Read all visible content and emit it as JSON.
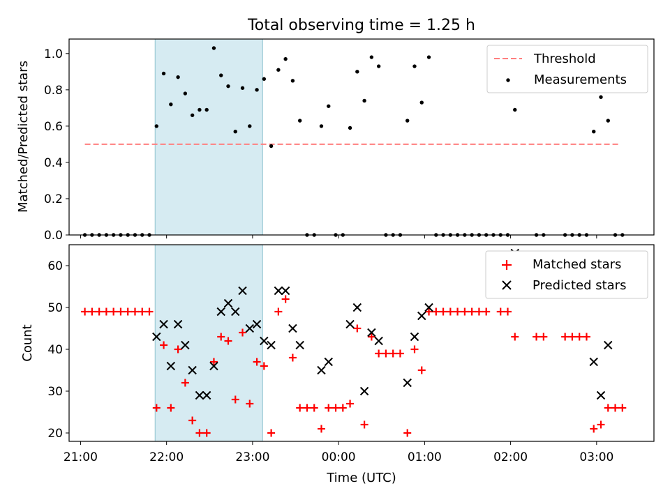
{
  "chart_data": [
    {
      "type": "scatter",
      "title": "Total observing time = 1.25 h",
      "xlabel": "",
      "ylabel": "Matched/Predicted stars",
      "xlim": [
        "20:52",
        "03:40"
      ],
      "ylim": [
        0,
        1.08
      ],
      "yticks": [
        "0.0",
        "0.2",
        "0.4",
        "0.6",
        "0.8",
        "1.0"
      ],
      "grid": false,
      "legend_position": "top-right",
      "shaded_interval": [
        "21:52",
        "23:07"
      ],
      "series": [
        {
          "name": "Threshold",
          "kind": "dashed-line",
          "color": "#ff7f7f",
          "x": [
            "21:03",
            "03:15"
          ],
          "y": [
            0.5,
            0.5
          ]
        },
        {
          "name": "Measurements",
          "kind": "points",
          "color": "#000000",
          "points": [
            [
              "21:03",
              0
            ],
            [
              "21:08",
              0
            ],
            [
              "21:13",
              0
            ],
            [
              "21:18",
              0
            ],
            [
              "21:23",
              0
            ],
            [
              "21:28",
              0
            ],
            [
              "21:33",
              0
            ],
            [
              "21:38",
              0
            ],
            [
              "21:43",
              0
            ],
            [
              "21:48",
              0
            ],
            [
              "21:53",
              0.6
            ],
            [
              "21:58",
              0.89
            ],
            [
              "22:03",
              0.72
            ],
            [
              "22:08",
              0.87
            ],
            [
              "22:13",
              0.78
            ],
            [
              "22:18",
              0.66
            ],
            [
              "22:23",
              0.69
            ],
            [
              "22:28",
              0.69
            ],
            [
              "22:33",
              1.03
            ],
            [
              "22:38",
              0.88
            ],
            [
              "22:43",
              0.82
            ],
            [
              "22:48",
              0.57
            ],
            [
              "22:53",
              0.81
            ],
            [
              "22:58",
              0.6
            ],
            [
              "23:03",
              0.8
            ],
            [
              "23:08",
              0.86
            ],
            [
              "23:13",
              0.49
            ],
            [
              "23:18",
              0.91
            ],
            [
              "23:23",
              0.97
            ],
            [
              "23:28",
              0.85
            ],
            [
              "23:33",
              0.63
            ],
            [
              "23:38",
              0
            ],
            [
              "23:43",
              0
            ],
            [
              "23:48",
              0.6
            ],
            [
              "23:53",
              0.71
            ],
            [
              "23:58",
              0
            ],
            [
              "00:03",
              0
            ],
            [
              "00:08",
              0.59
            ],
            [
              "00:13",
              0.9
            ],
            [
              "00:18",
              0.74
            ],
            [
              "00:23",
              0.98
            ],
            [
              "00:28",
              0.93
            ],
            [
              "00:33",
              0
            ],
            [
              "00:38",
              0
            ],
            [
              "00:43",
              0
            ],
            [
              "00:48",
              0.63
            ],
            [
              "00:53",
              0.93
            ],
            [
              "00:58",
              0.73
            ],
            [
              "01:03",
              0.98
            ],
            [
              "01:08",
              0
            ],
            [
              "01:13",
              0
            ],
            [
              "01:18",
              0
            ],
            [
              "01:23",
              0
            ],
            [
              "01:28",
              0
            ],
            [
              "01:33",
              0
            ],
            [
              "01:38",
              0
            ],
            [
              "01:43",
              0
            ],
            [
              "01:48",
              0
            ],
            [
              "01:53",
              0
            ],
            [
              "01:58",
              0
            ],
            [
              "02:03",
              0.69
            ],
            [
              "02:18",
              0
            ],
            [
              "02:23",
              0
            ],
            [
              "02:38",
              0
            ],
            [
              "02:43",
              0
            ],
            [
              "02:48",
              0
            ],
            [
              "02:53",
              0
            ],
            [
              "02:58",
              0.57
            ],
            [
              "03:03",
              0.76
            ],
            [
              "03:08",
              0.63
            ],
            [
              "03:13",
              0
            ],
            [
              "03:18",
              0
            ]
          ]
        }
      ]
    },
    {
      "type": "scatter",
      "title": "",
      "xlabel": "Time (UTC)",
      "ylabel": "Count",
      "xlim": [
        "20:52",
        "03:40"
      ],
      "ylim": [
        18,
        65
      ],
      "yticks": [
        "20",
        "30",
        "40",
        "50",
        "60"
      ],
      "xticks": [
        "21:00",
        "22:00",
        "23:00",
        "00:00",
        "01:00",
        "02:00",
        "03:00"
      ],
      "grid": false,
      "legend_position": "top-right",
      "shaded_interval": [
        "21:52",
        "23:07"
      ],
      "series": [
        {
          "name": "Matched stars",
          "marker": "plus",
          "color": "#ff0000",
          "points": [
            [
              "21:03",
              49
            ],
            [
              "21:08",
              49
            ],
            [
              "21:13",
              49
            ],
            [
              "21:18",
              49
            ],
            [
              "21:23",
              49
            ],
            [
              "21:28",
              49
            ],
            [
              "21:33",
              49
            ],
            [
              "21:38",
              49
            ],
            [
              "21:43",
              49
            ],
            [
              "21:48",
              49
            ],
            [
              "21:53",
              26
            ],
            [
              "21:58",
              41
            ],
            [
              "22:03",
              26
            ],
            [
              "22:08",
              40
            ],
            [
              "22:13",
              32
            ],
            [
              "22:18",
              23
            ],
            [
              "22:23",
              20
            ],
            [
              "22:28",
              20
            ],
            [
              "22:33",
              37
            ],
            [
              "22:38",
              43
            ],
            [
              "22:43",
              42
            ],
            [
              "22:48",
              28
            ],
            [
              "22:53",
              44
            ],
            [
              "22:58",
              27
            ],
            [
              "23:03",
              37
            ],
            [
              "23:08",
              36
            ],
            [
              "23:13",
              20
            ],
            [
              "23:18",
              49
            ],
            [
              "23:23",
              52
            ],
            [
              "23:28",
              38
            ],
            [
              "23:33",
              26
            ],
            [
              "23:38",
              26
            ],
            [
              "23:43",
              26
            ],
            [
              "23:48",
              21
            ],
            [
              "23:53",
              26
            ],
            [
              "23:58",
              26
            ],
            [
              "00:03",
              26
            ],
            [
              "00:08",
              27
            ],
            [
              "00:13",
              45
            ],
            [
              "00:18",
              22
            ],
            [
              "00:23",
              43
            ],
            [
              "00:28",
              39
            ],
            [
              "00:33",
              39
            ],
            [
              "00:38",
              39
            ],
            [
              "00:43",
              39
            ],
            [
              "00:48",
              20
            ],
            [
              "00:53",
              40
            ],
            [
              "00:58",
              35
            ],
            [
              "01:03",
              49
            ],
            [
              "01:08",
              49
            ],
            [
              "01:13",
              49
            ],
            [
              "01:18",
              49
            ],
            [
              "01:23",
              49
            ],
            [
              "01:28",
              49
            ],
            [
              "01:33",
              49
            ],
            [
              "01:38",
              49
            ],
            [
              "01:43",
              49
            ],
            [
              "01:53",
              49
            ],
            [
              "01:58",
              49
            ],
            [
              "02:03",
              43
            ],
            [
              "02:18",
              43
            ],
            [
              "02:23",
              43
            ],
            [
              "02:38",
              43
            ],
            [
              "02:43",
              43
            ],
            [
              "02:48",
              43
            ],
            [
              "02:53",
              43
            ],
            [
              "02:58",
              21
            ],
            [
              "03:03",
              22
            ],
            [
              "03:08",
              26
            ],
            [
              "03:13",
              26
            ],
            [
              "03:18",
              26
            ]
          ]
        },
        {
          "name": "Predicted stars",
          "marker": "x",
          "color": "#000000",
          "points": [
            [
              "21:53",
              43
            ],
            [
              "21:58",
              46
            ],
            [
              "22:03",
              36
            ],
            [
              "22:08",
              46
            ],
            [
              "22:13",
              41
            ],
            [
              "22:18",
              35
            ],
            [
              "22:23",
              29
            ],
            [
              "22:28",
              29
            ],
            [
              "22:33",
              36
            ],
            [
              "22:38",
              49
            ],
            [
              "22:43",
              51
            ],
            [
              "22:48",
              49
            ],
            [
              "22:53",
              54
            ],
            [
              "22:58",
              45
            ],
            [
              "23:03",
              46
            ],
            [
              "23:08",
              42
            ],
            [
              "23:13",
              41
            ],
            [
              "23:18",
              54
            ],
            [
              "23:23",
              54
            ],
            [
              "23:28",
              45
            ],
            [
              "23:33",
              41
            ],
            [
              "23:48",
              35
            ],
            [
              "23:53",
              37
            ],
            [
              "00:08",
              46
            ],
            [
              "00:13",
              50
            ],
            [
              "00:18",
              30
            ],
            [
              "00:23",
              44
            ],
            [
              "00:28",
              42
            ],
            [
              "00:48",
              32
            ],
            [
              "00:53",
              43
            ],
            [
              "00:58",
              48
            ],
            [
              "01:03",
              50
            ],
            [
              "02:03",
              63
            ],
            [
              "02:58",
              37
            ],
            [
              "03:03",
              29
            ],
            [
              "03:08",
              41
            ]
          ]
        }
      ]
    }
  ]
}
